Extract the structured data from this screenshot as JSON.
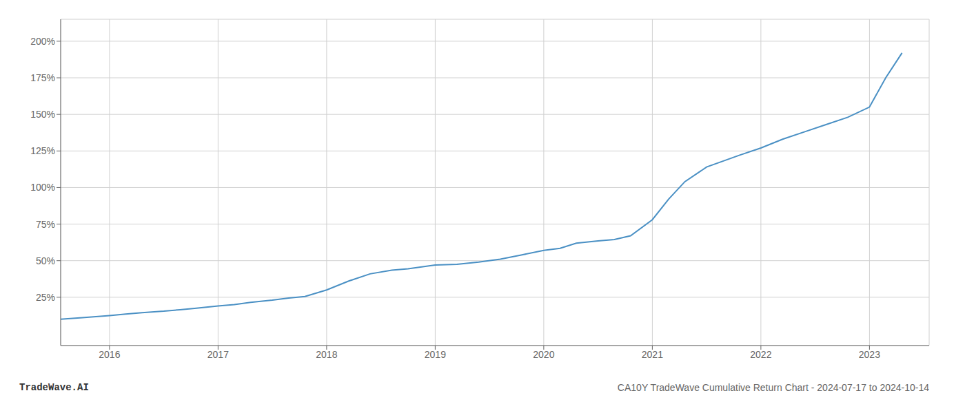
{
  "chart_data": {
    "type": "line",
    "title": "CA10Y TradeWave Cumulative Return Chart - 2024-07-17 to 2024-10-14",
    "annotations": [
      "TradeWave.AI"
    ],
    "color": "#4a90c4",
    "grid": true,
    "x": [
      2015.55,
      2015.75,
      2016.0,
      2016.15,
      2016.3,
      2016.5,
      2016.65,
      2016.8,
      2017.0,
      2017.15,
      2017.3,
      2017.5,
      2017.65,
      2017.8,
      2018.0,
      2018.2,
      2018.4,
      2018.6,
      2018.75,
      2019.0,
      2019.2,
      2019.4,
      2019.6,
      2019.8,
      2020.0,
      2020.15,
      2020.3,
      2020.5,
      2020.65,
      2020.8,
      2021.0,
      2021.15,
      2021.3,
      2021.5,
      2021.65,
      2021.8,
      2022.0,
      2022.2,
      2022.4,
      2022.6,
      2022.8,
      2023.0,
      2023.15,
      2023.3
    ],
    "values": [
      10.0,
      11.0,
      12.5,
      13.5,
      14.5,
      15.5,
      16.5,
      17.5,
      19.0,
      20.0,
      21.5,
      23.0,
      24.5,
      25.5,
      30.0,
      36.0,
      41.0,
      43.5,
      44.5,
      47.0,
      47.5,
      49.0,
      51.0,
      54.0,
      57.0,
      58.5,
      62.0,
      63.5,
      64.5,
      67.0,
      78.0,
      92.0,
      104.0,
      114.0,
      118.0,
      122.0,
      127.0,
      133.0,
      138.0,
      143.0,
      148.0,
      155.0,
      175.0,
      192.0
    ],
    "xlim": [
      2015.55,
      2023.55
    ],
    "xticks": [
      2016,
      2017,
      2018,
      2019,
      2020,
      2021,
      2022,
      2023
    ],
    "ylim": [
      -8,
      215
    ],
    "yticks": [
      {
        "value": 25,
        "label": "25%"
      },
      {
        "value": 50,
        "label": "50%"
      },
      {
        "value": 75,
        "label": "75%"
      },
      {
        "value": 100,
        "label": "100%"
      },
      {
        "value": 125,
        "label": "125%"
      },
      {
        "value": 150,
        "label": "150%"
      },
      {
        "value": 175,
        "label": "175%"
      },
      {
        "value": 200,
        "label": "200%"
      }
    ]
  }
}
